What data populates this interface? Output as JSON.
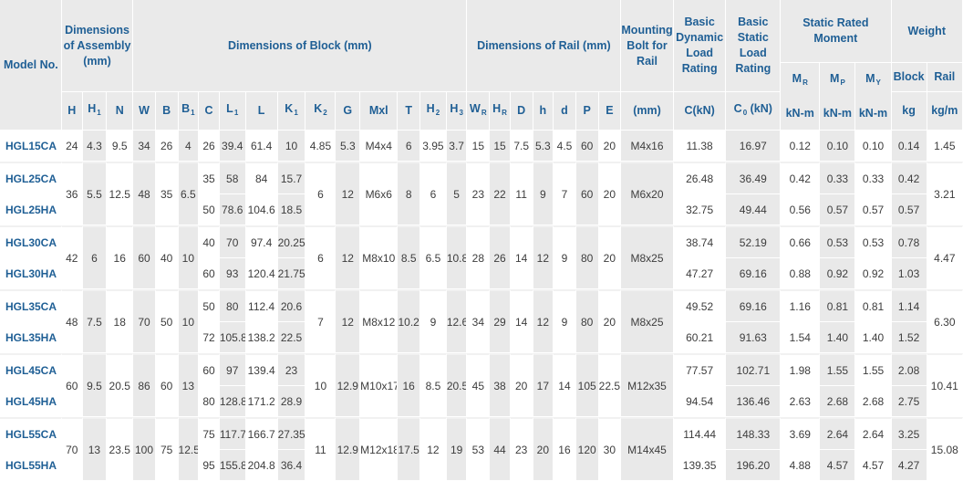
{
  "headers": {
    "model": "Model No.",
    "assembly": "Dimensions of Assembly (mm)",
    "block": "Dimensions of Block (mm)",
    "rail": "Dimensions of Rail (mm)",
    "bolt": "Mounting Bolt for Rail",
    "dynamic": "Basic Dynamic Load Rating",
    "static": "Basic Static Load Rating",
    "moment": "Static Rated Moment",
    "weight": "Weight",
    "col_h": "H",
    "col_h1": "H",
    "col_n": "N",
    "col_w": "W",
    "col_b": "B",
    "col_b1": "B",
    "col_c": "C",
    "col_l1": "L",
    "col_l": "L",
    "col_k1": "K",
    "col_k2": "K",
    "col_g": "G",
    "col_mxl": "Mxl",
    "col_t": "T",
    "col_h2": "H",
    "col_h3": "H",
    "col_wr": "W",
    "col_hr": "H",
    "col_d": "D",
    "col_hh": "h",
    "col_dd": "d",
    "col_p": "P",
    "col_e": "E",
    "bolt_unit": "(mm)",
    "dyn_unit": "C(kN)",
    "stat_unit": "C (kN)",
    "mr": "M",
    "mp": "M",
    "my": "M",
    "mr_unit": "kN-m",
    "mp_unit": "kN-m",
    "my_unit": "kN-m",
    "block_w": "Block",
    "rail_w": "Rail",
    "block_unit": "kg",
    "rail_unit": "kg/m",
    "sub_1": "1",
    "sub_2": "2",
    "sub_3": "3",
    "sub_r": "R",
    "sub_0": "0",
    "sub_p": "P",
    "sub_y": "Y"
  },
  "groups": [
    {
      "h": "24",
      "h1": "4.3",
      "n": "9.5",
      "w": "34",
      "b": "26",
      "b1": "4",
      "k2": "4.85",
      "g": "5.3",
      "mxl": "M4x4",
      "t": "6",
      "h2": "3.95",
      "h3": "3.7",
      "wr": "15",
      "hr": "15",
      "d": "7.5",
      "hh": "5.3",
      "dd": "4.5",
      "p": "60",
      "e": "20",
      "bolt": "M4x16",
      "rail_w": "1.45",
      "rows": [
        {
          "model": "HGL15CA",
          "c": "26",
          "l1": "39.4",
          "l": "61.4",
          "k1": "10",
          "dyn": "11.38",
          "stat": "16.97",
          "mr": "0.12",
          "mp": "0.10",
          "my": "0.10",
          "block_w": "0.14"
        }
      ]
    },
    {
      "h": "36",
      "h1": "5.5",
      "n": "12.5",
      "w": "48",
      "b": "35",
      "b1": "6.5",
      "k2": "6",
      "g": "12",
      "mxl": "M6x6",
      "t": "8",
      "h2": "6",
      "h3": "5",
      "wr": "23",
      "hr": "22",
      "d": "11",
      "hh": "9",
      "dd": "7",
      "p": "60",
      "e": "20",
      "bolt": "M6x20",
      "rail_w": "3.21",
      "rows": [
        {
          "model": "HGL25CA",
          "c": "35",
          "l1": "58",
          "l": "84",
          "k1": "15.7",
          "dyn": "26.48",
          "stat": "36.49",
          "mr": "0.42",
          "mp": "0.33",
          "my": "0.33",
          "block_w": "0.42"
        },
        {
          "model": "HGL25HA",
          "c": "50",
          "l1": "78.6",
          "l": "104.6",
          "k1": "18.5",
          "dyn": "32.75",
          "stat": "49.44",
          "mr": "0.56",
          "mp": "0.57",
          "my": "0.57",
          "block_w": "0.57"
        }
      ]
    },
    {
      "h": "42",
      "h1": "6",
      "n": "16",
      "w": "60",
      "b": "40",
      "b1": "10",
      "k2": "6",
      "g": "12",
      "mxl": "M8x10",
      "t": "8.5",
      "h2": "6.5",
      "h3": "10.8",
      "wr": "28",
      "hr": "26",
      "d": "14",
      "hh": "12",
      "dd": "9",
      "p": "80",
      "e": "20",
      "bolt": "M8x25",
      "rail_w": "4.47",
      "rows": [
        {
          "model": "HGL30CA",
          "c": "40",
          "l1": "70",
          "l": "97.4",
          "k1": "20.25",
          "dyn": "38.74",
          "stat": "52.19",
          "mr": "0.66",
          "mp": "0.53",
          "my": "0.53",
          "block_w": "0.78"
        },
        {
          "model": "HGL30HA",
          "c": "60",
          "l1": "93",
          "l": "120.4",
          "k1": "21.75",
          "dyn": "47.27",
          "stat": "69.16",
          "mr": "0.88",
          "mp": "0.92",
          "my": "0.92",
          "block_w": "1.03"
        }
      ]
    },
    {
      "h": "48",
      "h1": "7.5",
      "n": "18",
      "w": "70",
      "b": "50",
      "b1": "10",
      "k2": "7",
      "g": "12",
      "mxl": "M8x12",
      "t": "10.2",
      "h2": "9",
      "h3": "12.6",
      "wr": "34",
      "hr": "29",
      "d": "14",
      "hh": "12",
      "dd": "9",
      "p": "80",
      "e": "20",
      "bolt": "M8x25",
      "rail_w": "6.30",
      "rows": [
        {
          "model": "HGL35CA",
          "c": "50",
          "l1": "80",
          "l": "112.4",
          "k1": "20.6",
          "dyn": "49.52",
          "stat": "69.16",
          "mr": "1.16",
          "mp": "0.81",
          "my": "0.81",
          "block_w": "1.14"
        },
        {
          "model": "HGL35HA",
          "c": "72",
          "l1": "105.8",
          "l": "138.2",
          "k1": "22.5",
          "dyn": "60.21",
          "stat": "91.63",
          "mr": "1.54",
          "mp": "1.40",
          "my": "1.40",
          "block_w": "1.52"
        }
      ]
    },
    {
      "h": "60",
      "h1": "9.5",
      "n": "20.5",
      "w": "86",
      "b": "60",
      "b1": "13",
      "k2": "10",
      "g": "12.9",
      "mxl": "M10x17",
      "t": "16",
      "h2": "8.5",
      "h3": "20.5",
      "wr": "45",
      "hr": "38",
      "d": "20",
      "hh": "17",
      "dd": "14",
      "p": "105",
      "e": "22.5",
      "bolt": "M12x35",
      "rail_w": "10.41",
      "rows": [
        {
          "model": "HGL45CA",
          "c": "60",
          "l1": "97",
          "l": "139.4",
          "k1": "23",
          "dyn": "77.57",
          "stat": "102.71",
          "mr": "1.98",
          "mp": "1.55",
          "my": "1.55",
          "block_w": "2.08"
        },
        {
          "model": "HGL45HA",
          "c": "80",
          "l1": "128.8",
          "l": "171.2",
          "k1": "28.9",
          "dyn": "94.54",
          "stat": "136.46",
          "mr": "2.63",
          "mp": "2.68",
          "my": "2.68",
          "block_w": "2.75"
        }
      ]
    },
    {
      "h": "70",
      "h1": "13",
      "n": "23.5",
      "w": "100",
      "b": "75",
      "b1": "12.5",
      "k2": "11",
      "g": "12.9",
      "mxl": "M12x18",
      "t": "17.5",
      "h2": "12",
      "h3": "19",
      "wr": "53",
      "hr": "44",
      "d": "23",
      "hh": "20",
      "dd": "16",
      "p": "120",
      "e": "30",
      "bolt": "M14x45",
      "rail_w": "15.08",
      "rows": [
        {
          "model": "HGL55CA",
          "c": "75",
          "l1": "117.7",
          "l": "166.7",
          "k1": "27.35",
          "dyn": "114.44",
          "stat": "148.33",
          "mr": "3.69",
          "mp": "2.64",
          "my": "2.64",
          "block_w": "3.25"
        },
        {
          "model": "HGL55HA",
          "c": "95",
          "l1": "155.8",
          "l": "204.8",
          "k1": "36.4",
          "dyn": "139.35",
          "stat": "196.20",
          "mr": "4.88",
          "mp": "4.57",
          "my": "4.57",
          "block_w": "4.27"
        }
      ]
    }
  ]
}
